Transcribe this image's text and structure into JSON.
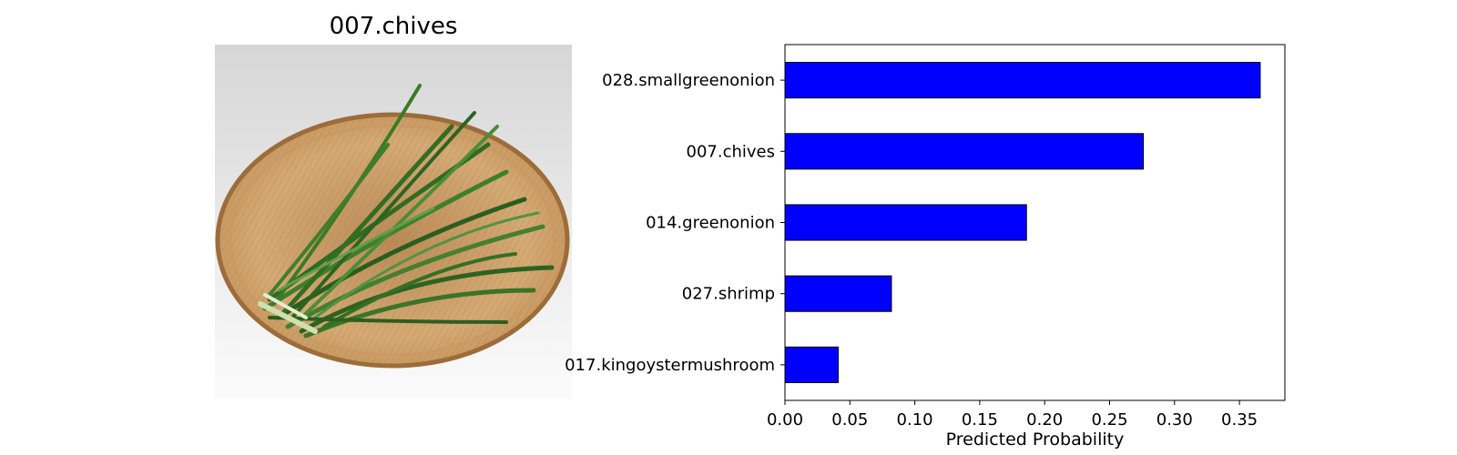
{
  "image_panel": {
    "title": "007.chives",
    "photo_subject": "chives-in-bamboo-basket"
  },
  "chart_data": {
    "type": "bar",
    "orientation": "horizontal",
    "categories": [
      "028.smallgreenonion",
      "007.chives",
      "014.greenonion",
      "027.shrimp",
      "017.kingoystermushroom"
    ],
    "values": [
      0.366,
      0.276,
      0.186,
      0.082,
      0.041
    ],
    "xlabel": "Predicted Probability",
    "ylabel": "",
    "xlim": [
      0,
      0.385
    ],
    "xticks": [
      0.0,
      0.05,
      0.1,
      0.15,
      0.2,
      0.25,
      0.3,
      0.35
    ],
    "xtick_labels": [
      "0.00",
      "0.05",
      "0.10",
      "0.15",
      "0.20",
      "0.25",
      "0.30",
      "0.35"
    ],
    "bar_color": "#0000ff",
    "edge_color": "#000000",
    "grid": false,
    "legend": "none"
  }
}
